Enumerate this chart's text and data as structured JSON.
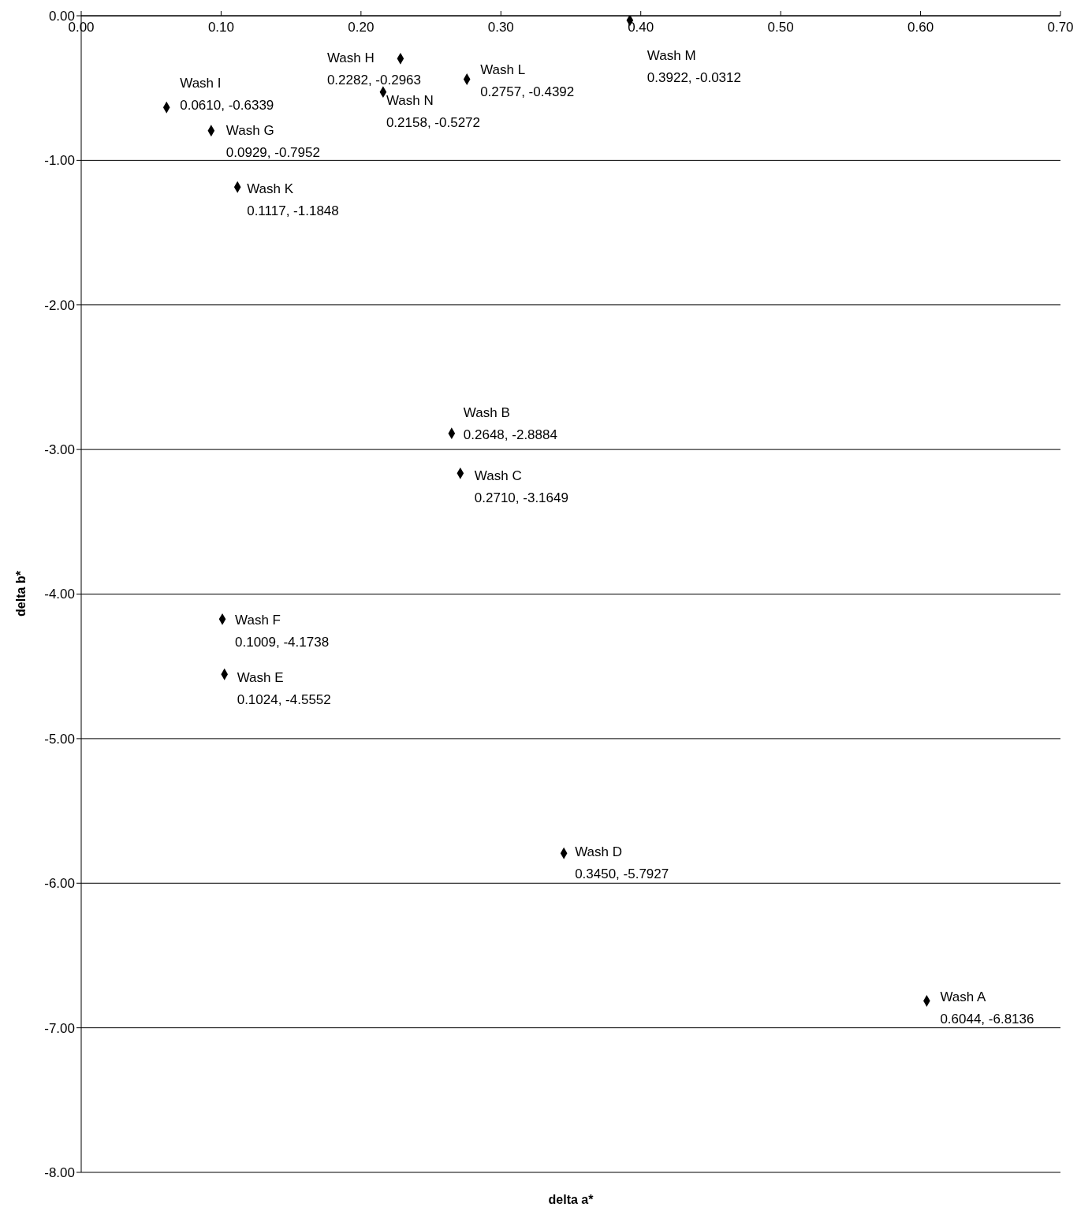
{
  "chart_data": {
    "type": "scatter",
    "xlabel": "delta a*",
    "ylabel": "delta b*",
    "x": [
      0.6044,
      0.2648,
      0.271,
      0.345,
      0.1024,
      0.1009,
      0.0929,
      0.2282,
      0.061,
      0.1117,
      0.2757,
      0.3922,
      0.2158
    ],
    "series": [
      {
        "color": "#000000",
        "values": [
          -6.8136,
          -2.8884,
          -3.1649,
          -5.7927,
          -4.5552,
          -4.1738,
          -0.7952,
          -0.2963,
          -0.6339,
          -1.1848,
          -0.4392,
          -0.0312,
          -0.5272
        ],
        "value_labels": [
          "Wash A\n0.6044, -6.8136",
          "Wash B\n0.2648, -2.8884",
          "Wash C\n0.2710, -3.1649",
          "Wash D\n0.3450, -5.7927",
          "Wash E\n0.1024, -4.5552",
          "Wash F\n0.1009, -4.1738",
          "Wash G\n0.0929, -0.7952",
          "Wash H\n0.2282, -0.2963",
          "Wash I\n0.0610, -0.6339",
          "Wash K\n0.1117, -1.1848",
          "Wash L\n0.2757, -0.4392",
          "Wash M\n0.3922, -0.0312",
          "Wash N\n0.2158, -0.5272"
        ]
      }
    ],
    "xlim": [
      0,
      0.7
    ],
    "xticks": [
      {
        "value": 0,
        "label": "0.00"
      },
      {
        "value": 0.1,
        "label": "0.10"
      },
      {
        "value": 0.2,
        "label": "0.20"
      },
      {
        "value": 0.3,
        "label": "0.30"
      },
      {
        "value": 0.4,
        "label": "0.40"
      },
      {
        "value": 0.5,
        "label": "0.50"
      },
      {
        "value": 0.6,
        "label": "0.60"
      },
      {
        "value": 0.7,
        "label": "0.70"
      }
    ],
    "ylim": [
      -8,
      0
    ],
    "yticks": [
      {
        "value": 0,
        "label": "0.00"
      },
      {
        "value": -1,
        "label": "-1.00"
      },
      {
        "value": -2,
        "label": "-2.00"
      },
      {
        "value": -3,
        "label": "-3.00"
      },
      {
        "value": -4,
        "label": "-4.00"
      },
      {
        "value": -5,
        "label": "-5.00"
      },
      {
        "value": -6,
        "label": "-6.00"
      },
      {
        "value": -7,
        "label": "-7.00"
      },
      {
        "value": -8,
        "label": "-8.00"
      }
    ],
    "grid": "y",
    "marker": "diamond",
    "legend": false
  }
}
